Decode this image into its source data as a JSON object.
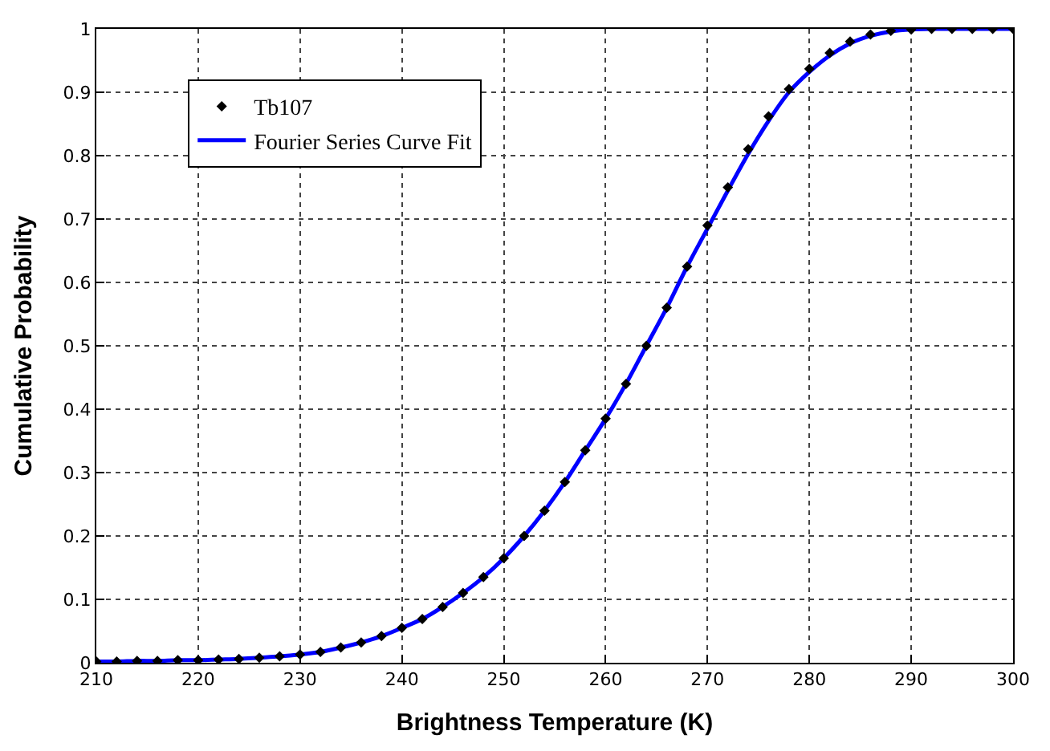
{
  "chart_data": {
    "type": "line",
    "xlabel": "Brightness Temperature (K)",
    "ylabel": "Cumulative Probability",
    "x": [
      210,
      212,
      214,
      216,
      218,
      220,
      222,
      224,
      226,
      228,
      230,
      232,
      234,
      236,
      238,
      240,
      242,
      244,
      246,
      248,
      250,
      252,
      254,
      256,
      258,
      260,
      262,
      264,
      266,
      268,
      270,
      272,
      274,
      276,
      278,
      280,
      282,
      284,
      286,
      288,
      290,
      292,
      294,
      296,
      298,
      300
    ],
    "series": [
      {
        "name": "Tb107",
        "type": "scatter",
        "color": "#000000",
        "marker": "diamond",
        "values": [
          0.002,
          0.002,
          0.003,
          0.003,
          0.004,
          0.004,
          0.005,
          0.006,
          0.008,
          0.01,
          0.013,
          0.017,
          0.024,
          0.032,
          0.042,
          0.055,
          0.069,
          0.088,
          0.11,
          0.135,
          0.165,
          0.2,
          0.24,
          0.285,
          0.335,
          0.385,
          0.44,
          0.5,
          0.56,
          0.625,
          0.69,
          0.75,
          0.81,
          0.862,
          0.905,
          0.937,
          0.962,
          0.98,
          0.991,
          0.997,
          0.999,
          1,
          1,
          1,
          1,
          1
        ]
      },
      {
        "name": "Fourier Series Curve Fit",
        "color": "#0000ff",
        "line_style": "solid",
        "values": [
          0.002,
          0.002,
          0.003,
          0.003,
          0.004,
          0.004,
          0.005,
          0.006,
          0.008,
          0.01,
          0.013,
          0.017,
          0.024,
          0.032,
          0.042,
          0.055,
          0.069,
          0.088,
          0.11,
          0.135,
          0.165,
          0.2,
          0.24,
          0.285,
          0.335,
          0.385,
          0.44,
          0.5,
          0.56,
          0.625,
          0.685,
          0.745,
          0.803,
          0.855,
          0.9,
          0.932,
          0.958,
          0.977,
          0.989,
          0.996,
          0.999,
          1,
          1,
          1,
          1,
          1
        ]
      }
    ],
    "xlim": [
      210,
      300
    ],
    "xticks": [
      210,
      220,
      230,
      240,
      250,
      260,
      270,
      280,
      290,
      300
    ],
    "ylim": [
      0,
      1
    ],
    "yticks": [
      0,
      0.1,
      0.2,
      0.3,
      0.4,
      0.5,
      0.6,
      0.7,
      0.8,
      0.9,
      1
    ],
    "grid": true,
    "legend": "top left"
  }
}
